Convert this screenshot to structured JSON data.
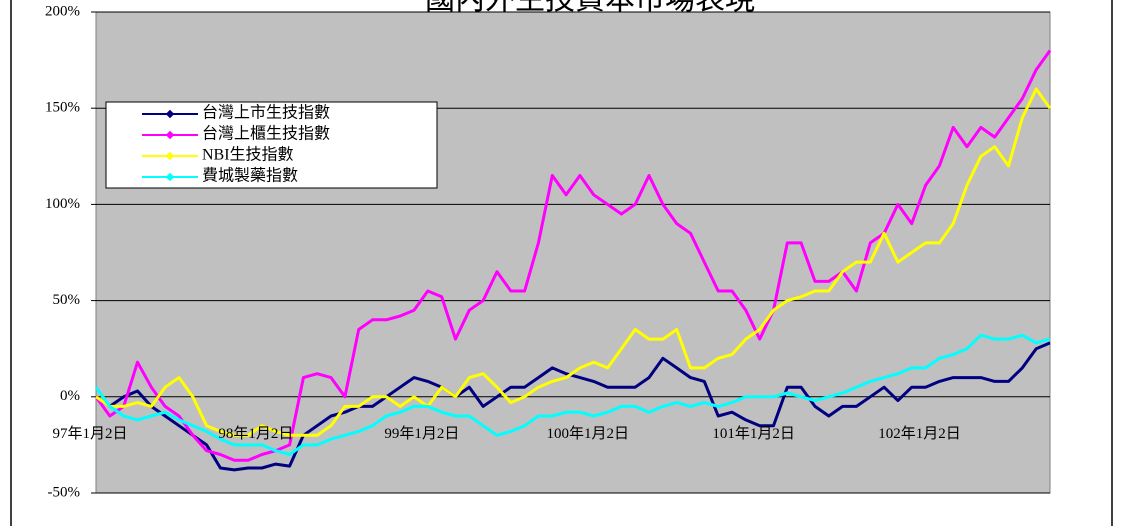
{
  "chart_data": {
    "type": "line",
    "title": "國內外生技資本市場表現",
    "categories": [
      "97年1月2日",
      null,
      null,
      null,
      null,
      null,
      null,
      null,
      null,
      null,
      null,
      null,
      "98年1月2日",
      null,
      null,
      null,
      null,
      null,
      null,
      null,
      null,
      null,
      null,
      null,
      "99年1月2日",
      null,
      null,
      null,
      null,
      null,
      null,
      null,
      null,
      null,
      null,
      null,
      "100年1月2日",
      null,
      null,
      null,
      null,
      null,
      null,
      null,
      null,
      null,
      null,
      null,
      "101年1月2日",
      null,
      null,
      null,
      null,
      null,
      null,
      null,
      null,
      null,
      null,
      null,
      "102年1月2日",
      null,
      null,
      null,
      null,
      null,
      null,
      null,
      null,
      null
    ],
    "series": [
      {
        "name": "台灣上市生技指數",
        "color": "#000080",
        "values": [
          0,
          -5,
          0,
          3,
          -5,
          -10,
          -15,
          -20,
          -25,
          -37,
          -38,
          -37,
          -37,
          -35,
          -36,
          -20,
          -15,
          -10,
          -8,
          -5,
          -5,
          0,
          5,
          10,
          8,
          5,
          0,
          5,
          -5,
          0,
          5,
          5,
          10,
          15,
          12,
          10,
          8,
          5,
          5,
          5,
          10,
          20,
          15,
          10,
          8,
          -10,
          -8,
          -12,
          -15,
          -15,
          5,
          5,
          -5,
          -10,
          -5,
          -5,
          0,
          5,
          -2,
          5,
          5,
          8,
          10,
          10,
          10,
          8,
          8,
          15,
          25,
          28
        ]
      },
      {
        "name": "台灣上櫃生技指數",
        "color": "#ff00ff",
        "values": [
          0,
          -10,
          -5,
          18,
          5,
          -5,
          -10,
          -20,
          -28,
          -30,
          -33,
          -33,
          -30,
          -28,
          -25,
          10,
          12,
          10,
          0,
          35,
          40,
          40,
          42,
          45,
          55,
          52,
          30,
          45,
          50,
          65,
          55,
          55,
          80,
          115,
          105,
          115,
          105,
          100,
          95,
          100,
          115,
          100,
          90,
          85,
          70,
          55,
          55,
          45,
          30,
          45,
          80,
          80,
          60,
          60,
          65,
          55,
          80,
          85,
          100,
          90,
          110,
          120,
          140,
          130,
          140,
          135,
          145,
          155,
          170,
          180
        ]
      },
      {
        "name": "NBI生技指數",
        "color": "#ffff00",
        "values": [
          0,
          -5,
          -5,
          -3,
          -5,
          5,
          10,
          0,
          -15,
          -18,
          -20,
          -20,
          -15,
          -18,
          -20,
          -20,
          -20,
          -15,
          -5,
          -5,
          0,
          0,
          -5,
          0,
          -5,
          5,
          0,
          10,
          12,
          5,
          -3,
          0,
          5,
          8,
          10,
          15,
          18,
          15,
          25,
          35,
          30,
          30,
          35,
          15,
          15,
          20,
          22,
          30,
          35,
          45,
          50,
          52,
          55,
          55,
          65,
          70,
          70,
          85,
          70,
          75,
          80,
          80,
          90,
          110,
          125,
          130,
          120,
          145,
          160,
          150
        ]
      },
      {
        "name": "費城製藥指數",
        "color": "#00ffff",
        "values": [
          5,
          -5,
          -10,
          -12,
          -10,
          -8,
          -12,
          -15,
          -18,
          -22,
          -25,
          -25,
          -25,
          -28,
          -30,
          -25,
          -25,
          -22,
          -20,
          -18,
          -15,
          -10,
          -8,
          -5,
          -5,
          -8,
          -10,
          -10,
          -15,
          -20,
          -18,
          -15,
          -10,
          -10,
          -8,
          -8,
          -10,
          -8,
          -5,
          -5,
          -8,
          -5,
          -3,
          -5,
          -3,
          -5,
          -3,
          0,
          0,
          0,
          2,
          0,
          -2,
          0,
          2,
          5,
          8,
          10,
          12,
          15,
          15,
          20,
          22,
          25,
          32,
          30,
          30,
          32,
          28,
          30
        ]
      }
    ],
    "ylim": [
      -50,
      200
    ],
    "yticks": [
      {
        "value": -50,
        "label": "-50%"
      },
      {
        "value": 0,
        "label": "0%"
      },
      {
        "value": 50,
        "label": "50%"
      },
      {
        "value": 100,
        "label": "100%"
      },
      {
        "value": 150,
        "label": "150%"
      },
      {
        "value": 200,
        "label": "200%"
      }
    ],
    "grid": true,
    "plot_background": "#c0c0c0",
    "legend": "upper left"
  }
}
